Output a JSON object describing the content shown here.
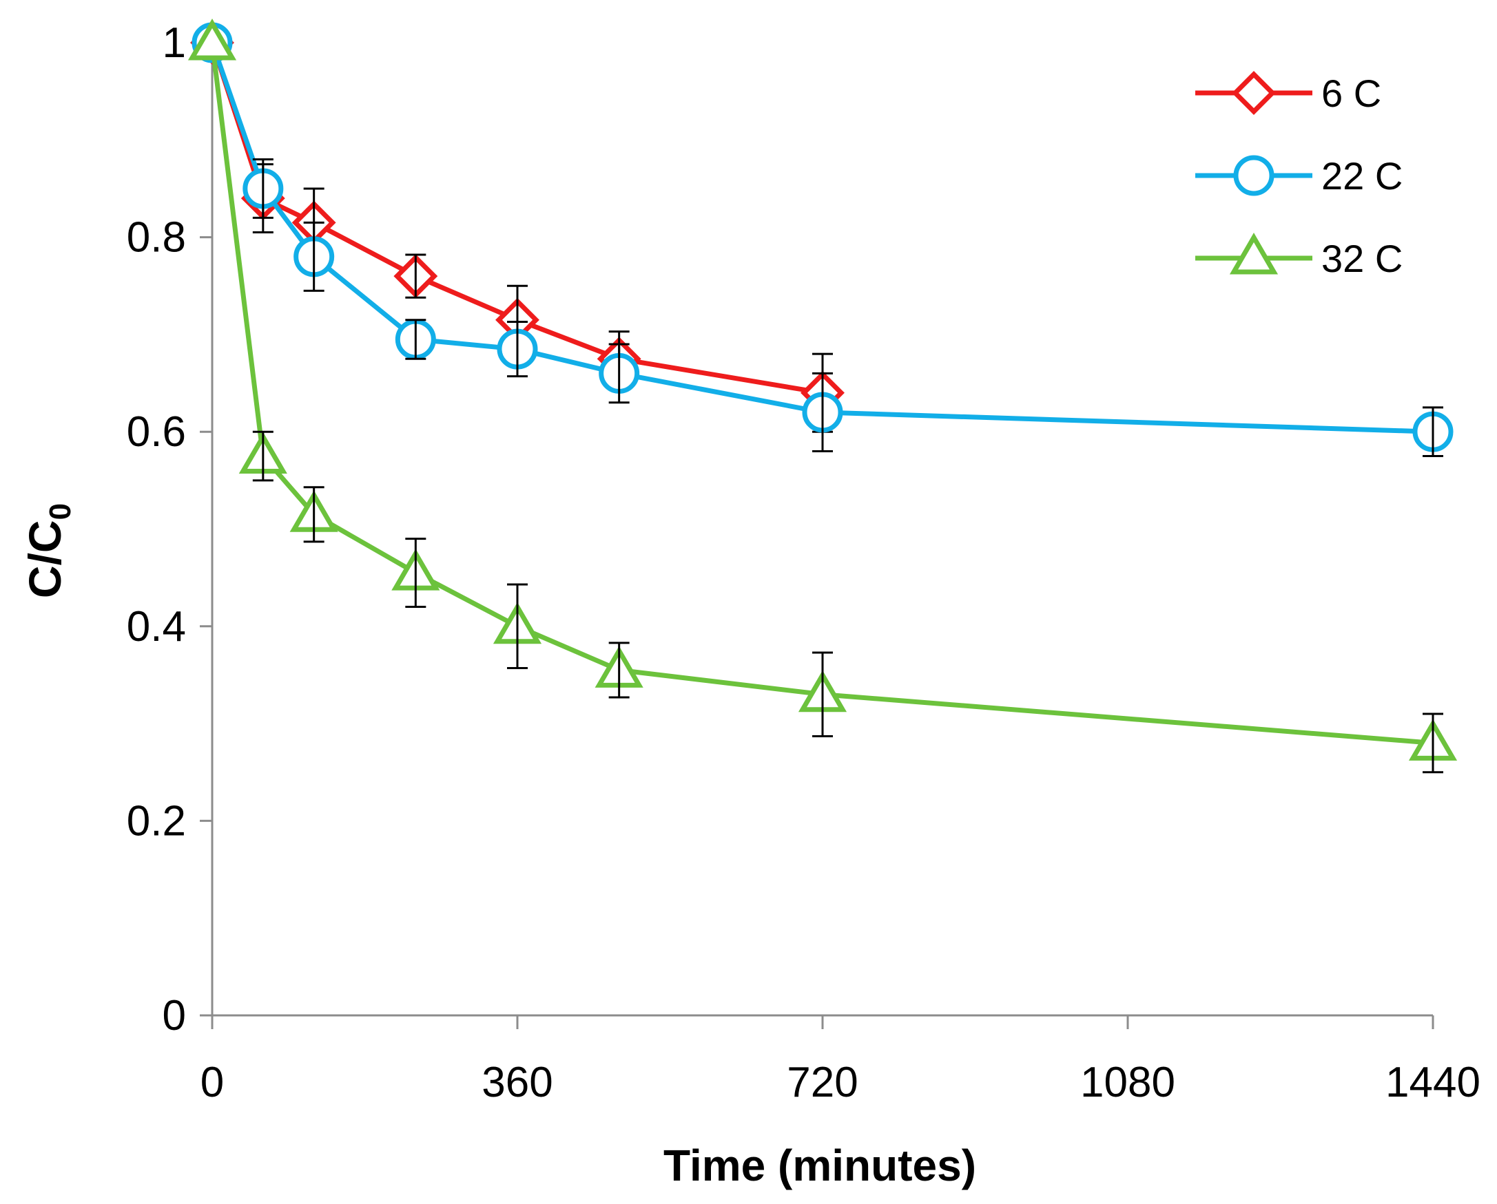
{
  "chart_data": {
    "type": "line",
    "title": "",
    "xlabel": "Time (minutes)",
    "ylabel_main": "C/C",
    "ylabel_sub": "0",
    "xlim": [
      0,
      1440
    ],
    "ylim": [
      0,
      1
    ],
    "x_ticks": [
      0,
      360,
      720,
      1080,
      1440
    ],
    "x_tick_labels": [
      "0",
      "360",
      "720",
      "1080",
      "1440"
    ],
    "y_ticks": [
      0,
      0.2,
      0.4,
      0.6,
      0.8,
      1
    ],
    "y_tick_labels": [
      "0",
      "0.2",
      "0.4",
      "0.6",
      "0.8",
      "1"
    ],
    "grid": false,
    "legend_position": "top-right",
    "series": [
      {
        "name": "6 C",
        "color": "#ee1c1c",
        "marker": "diamond",
        "x": [
          0,
          60,
          120,
          240,
          360,
          480,
          720
        ],
        "values": [
          1.0,
          0.84,
          0.815,
          0.76,
          0.715,
          0.675,
          0.64
        ],
        "errors": [
          0,
          0.035,
          0.035,
          0.022,
          0.035,
          0.028,
          0.04
        ]
      },
      {
        "name": "22 C",
        "color": "#12aee8",
        "marker": "circle",
        "x": [
          0,
          60,
          120,
          240,
          360,
          480,
          720,
          1440
        ],
        "values": [
          1.0,
          0.85,
          0.78,
          0.695,
          0.685,
          0.66,
          0.62,
          0.6
        ],
        "errors": [
          0,
          0.03,
          0.035,
          0.02,
          0.028,
          0.03,
          0.04,
          0.025
        ]
      },
      {
        "name": "32 C",
        "color": "#6cc23c",
        "marker": "triangle",
        "x": [
          0,
          60,
          120,
          240,
          360,
          480,
          720,
          1440
        ],
        "values": [
          1.0,
          0.575,
          0.515,
          0.455,
          0.4,
          0.355,
          0.33,
          0.28
        ],
        "errors": [
          0,
          0.025,
          0.028,
          0.035,
          0.043,
          0.028,
          0.043,
          0.03
        ]
      }
    ]
  }
}
